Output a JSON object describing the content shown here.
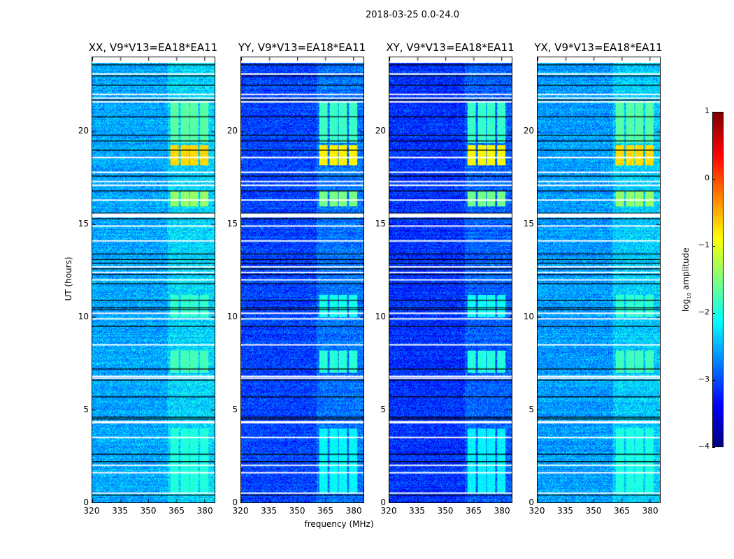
{
  "chart_data": {
    "type": "heatmap",
    "title": "2018-03-25 0.0-24.0",
    "xlabel": "frequency (MHz)",
    "ylabel": "UT (hours)",
    "xlim": [
      320,
      385.5
    ],
    "ylim": [
      0,
      24
    ],
    "xticks": [
      320,
      335,
      350,
      365,
      380
    ],
    "yticks": [
      0,
      5,
      10,
      15,
      20
    ],
    "colorbar": {
      "label": "log10 amplitude",
      "label_main": "log",
      "label_sub": "10",
      "label_rest": " amplitude",
      "range": [
        -4,
        1
      ],
      "ticks": [
        "1",
        "0",
        "−1",
        "−2",
        "−3",
        "−4"
      ],
      "tick_values": [
        1,
        0,
        -1,
        -2,
        -3,
        -4
      ],
      "colormap": "jet"
    },
    "panels": [
      {
        "title": "XX, V9*V13=EA18*EA11",
        "base_level": -2.55
      },
      {
        "title": "YY, V9*V13=EA18*EA11",
        "base_level": -3.05
      },
      {
        "title": "XY, V9*V13=EA18*EA11",
        "base_level": -3.15
      },
      {
        "title": "YX, V9*V13=EA18*EA11",
        "base_level": -2.6
      }
    ],
    "rfi_channels_mhz": [
      [
        361.5,
        366
      ],
      [
        367,
        371.5
      ],
      [
        372,
        376.5
      ],
      [
        377.5,
        382
      ]
    ],
    "rfi_bursts": [
      {
        "ut": [
          18.2,
          19.3
        ],
        "level": -0.7
      },
      {
        "ut": [
          19.4,
          21.6
        ],
        "level": -1.7
      },
      {
        "ut": [
          16.0,
          16.8
        ],
        "level": -1.4
      },
      {
        "ut": [
          10.0,
          11.2
        ],
        "level": -1.9
      },
      {
        "ut": [
          7.0,
          8.2
        ],
        "level": -1.8
      },
      {
        "ut": [
          0.5,
          4.0
        ],
        "level": -2.0
      }
    ],
    "flagged_white_ut": [
      23.1,
      22.0,
      21.8,
      21.6,
      18.6,
      17.8,
      17.3,
      17.1,
      16.3,
      15.5,
      15.4,
      14.9,
      14.1,
      12.7,
      12.4,
      12.0,
      10.2,
      9.9,
      8.5,
      6.8,
      6.7,
      4.35,
      4.3,
      3.5,
      2.0,
      1.6,
      0.5
    ],
    "flagged_black_ut": [
      23.6,
      23.0,
      22.5,
      21.7,
      20.8,
      19.8,
      19.5,
      19.0,
      17.6,
      16.8,
      15.6,
      15.3,
      13.4,
      13.1,
      12.9,
      12.6,
      12.3,
      11.8,
      10.9,
      10.5,
      10.4,
      9.5,
      7.2,
      6.6,
      5.7,
      4.6,
      4.5,
      2.6,
      2.2,
      0.4
    ]
  }
}
